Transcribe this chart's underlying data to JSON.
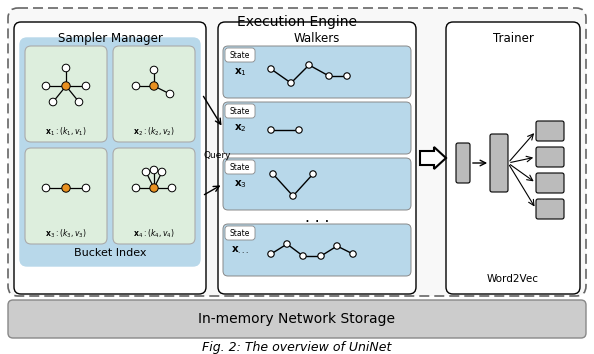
{
  "title": "Fig. 2: The overview of UniNet",
  "execution_engine_label": "Execution Engine",
  "sampler_manager_label": "Sampler Manager",
  "walkers_label": "Walkers",
  "trainer_label": "Trainer",
  "bucket_index_label": "Bucket Index",
  "word2vec_label": "Word2Vec",
  "storage_label": "In-memory Network Storage",
  "query_label": "Query",
  "colors": {
    "outer_bg": "#ffffff",
    "bucket_index_bg": "#b8d8ea",
    "bucket_cell_bg": "#ddeedd",
    "walker_row_bg": "#b8d8ea",
    "storage_bg": "#cccccc",
    "node_center": "#e89020",
    "node_outer": "#ffffff",
    "nn_block_bg": "#bbbbbb",
    "dashed_border": "#666666"
  },
  "fig_width": 5.94,
  "fig_height": 3.54,
  "dpi": 100
}
